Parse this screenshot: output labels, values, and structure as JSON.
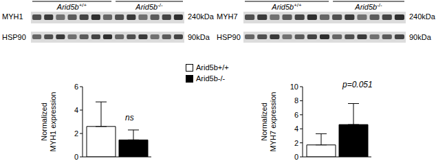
{
  "blots": [
    {
      "target": "MYH1",
      "target_kda": "240kDa",
      "control": "HSP90",
      "control_kda": "90kDa",
      "groups": [
        "Arid5b+/+",
        "Arid5b-/-"
      ]
    },
    {
      "target": "MYH7",
      "target_kda": "240kDa",
      "control": "HSP90",
      "control_kda": "90kDa",
      "groups": [
        "Arid5b+/+",
        "Arid5b-/-"
      ]
    }
  ],
  "chart_data": [
    {
      "type": "bar",
      "y_label": "Normalized MYH1 expression",
      "annotation": "ns",
      "categories": [
        null
      ],
      "ylim": [
        0,
        6
      ],
      "yticks": [
        0,
        2,
        4,
        6
      ],
      "tick_labels": "y",
      "series": [
        {
          "name": "Arid5b+/+",
          "color": "#ffffff",
          "values": [
            2.6
          ],
          "error": [
            2.1
          ]
        },
        {
          "name": "Arid5b-/-",
          "color": "#000000",
          "values": [
            1.45
          ],
          "error": [
            0.85
          ]
        }
      ]
    },
    {
      "type": "bar",
      "y_label": "Normalized MYH7 expression",
      "annotation": "p=0.051",
      "categories": [
        null
      ],
      "ylim": [
        0,
        10
      ],
      "yticks": [
        0,
        2,
        4,
        6,
        8,
        10
      ],
      "tick_labels": "y",
      "legend": "upper left",
      "series": [
        {
          "name": "Arid5b+/+",
          "color": "#ffffff",
          "values": [
            1.7
          ],
          "error": [
            1.6
          ]
        },
        {
          "name": "Arid5b-/-",
          "color": "#000000",
          "values": [
            4.6
          ],
          "error": [
            3.0
          ]
        }
      ]
    }
  ]
}
